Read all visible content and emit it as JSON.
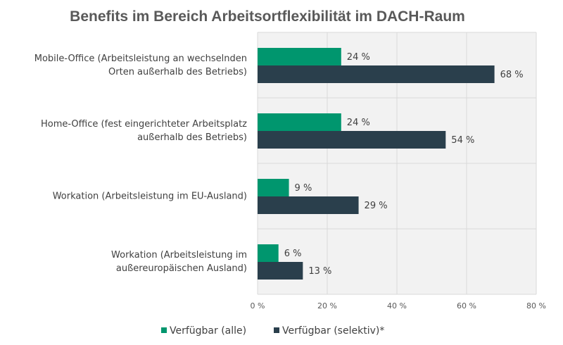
{
  "chart_data": {
    "type": "bar",
    "orientation": "horizontal",
    "title": "Benefits im Bereich Arbeitsortflexibilität im DACH-Raum",
    "categories": [
      [
        "Mobile-Office (Arbeitsleistung an wechselnden",
        "Orten außerhalb des Betriebs)"
      ],
      [
        "Home-Office (fest eingerichteter Arbeitsplatz",
        "außerhalb des Betriebs)"
      ],
      [
        "Workation (Arbeitsleistung im EU-Ausland)"
      ],
      [
        "Workation (Arbeitsleistung im",
        "außereuropäischen Ausland)"
      ]
    ],
    "series": [
      {
        "name": "Verfügbar (alle)",
        "color": "#00966e",
        "values": [
          24,
          24,
          9,
          6
        ]
      },
      {
        "name": "Verfügbar (selektiv)*",
        "color": "#2a3f4c",
        "values": [
          68,
          54,
          29,
          13
        ]
      }
    ],
    "xlim": [
      0,
      80
    ],
    "xticks": [
      0,
      20,
      40,
      60,
      80
    ],
    "tick_suffix": " %",
    "grid": true,
    "legend_position": "bottom",
    "background": "#f2f2f2",
    "grid_color": "#d9d9d9"
  }
}
